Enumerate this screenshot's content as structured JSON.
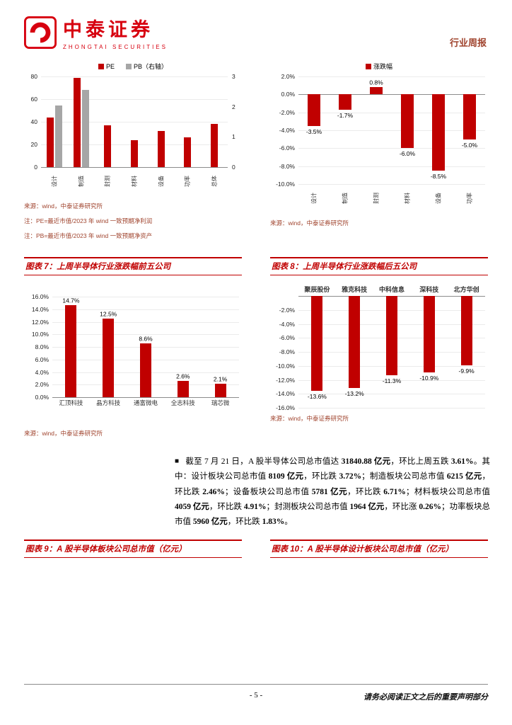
{
  "header": {
    "logo_cn": "中泰证券",
    "logo_en": "ZHONGTAI SECURITIES",
    "report_type": "行业周报"
  },
  "colors": {
    "brand_red": "#D7000F",
    "bar_red": "#C00000",
    "bar_gray": "#A6A6A6",
    "source_red": "#A0442E"
  },
  "chart_data": [
    {
      "id": "pe-pb",
      "type": "bar",
      "legend": [
        {
          "label": "PE",
          "color": "#C00000"
        },
        {
          "label": "PB（右轴）",
          "color": "#A6A6A6"
        }
      ],
      "categories": [
        "设计",
        "制造",
        "封测",
        "材料",
        "设备",
        "功率",
        "总体"
      ],
      "series": [
        {
          "name": "PE",
          "axis": "left",
          "color": "#C00000",
          "values": [
            44,
            79,
            37,
            24,
            32,
            26,
            38
          ]
        },
        {
          "name": "PB（右轴）",
          "axis": "right",
          "color": "#A6A6A6",
          "values": [
            2.05,
            2.55,
            null,
            null,
            null,
            null,
            null
          ]
        }
      ],
      "left_axis": {
        "min": 0,
        "max": 80,
        "ticks": [
          80,
          60,
          40,
          20,
          0
        ]
      },
      "right_axis": {
        "min": 0,
        "max": 3,
        "ticks": [
          3,
          2,
          1,
          0
        ]
      },
      "source": "来源：wind，中泰证券研究所",
      "notes": [
        "注：PE=最近市值/2023 年 wind 一致预期净利润",
        "注：PB=最近市值/2023 年 wind 一致预期净资产"
      ]
    },
    {
      "id": "sector-weekly-change",
      "type": "bar",
      "legend": [
        {
          "label": "涨跌幅",
          "color": "#C00000"
        }
      ],
      "categories": [
        "设计",
        "制造",
        "封测",
        "材料",
        "设备",
        "功率"
      ],
      "values": [
        -3.5,
        -1.7,
        0.8,
        -6.0,
        -8.5,
        -5.0
      ],
      "color": "#C00000",
      "axis": {
        "min": -10,
        "max": 2,
        "ticks": [
          2,
          0,
          -2,
          -4,
          -6,
          -8,
          -10
        ]
      },
      "source": "来源：wind，中泰证券研究所"
    },
    {
      "id": "top5-gainers",
      "type": "bar",
      "title": "图表 7：上周半导体行业涨跌幅前五公司",
      "categories": [
        "汇顶科技",
        "晶方科技",
        "通富微电",
        "全志科技",
        "瑞芯微"
      ],
      "values": [
        14.7,
        12.5,
        8.6,
        2.6,
        2.1
      ],
      "color": "#C00000",
      "axis": {
        "min": 0,
        "max": 16,
        "ticks": [
          16,
          14,
          12,
          10,
          8,
          6,
          4,
          2,
          0
        ]
      },
      "source": "来源：wind，中泰证券研究所"
    },
    {
      "id": "top5-losers",
      "type": "bar",
      "title": "图表 8：上周半导体行业涨跌幅后五公司",
      "categories": [
        "聚辰股份",
        "雅克科技",
        "中科信息",
        "深科技",
        "北方华创"
      ],
      "values": [
        -13.6,
        -13.2,
        -11.3,
        -10.9,
        -9.9
      ],
      "color": "#C00000",
      "axis": {
        "min": -16,
        "max": 0,
        "ticks": [
          -2,
          -4,
          -6,
          -8,
          -10,
          -12,
          -14,
          -16
        ]
      },
      "source": "来源：wind，中泰证券研究所"
    }
  ],
  "figures": {
    "fig9_title": "图表 9：A 股半导体板块公司总市值（亿元）",
    "fig10_title": "图表 10：A 股半导体设计板块公司总市值（亿元）"
  },
  "paragraph": {
    "bullet": "■",
    "segments": [
      {
        "t": "截至 7 月 21 日，A 股半导体公司总市值达 ",
        "b": 0
      },
      {
        "t": "31840.88 亿元",
        "b": 1
      },
      {
        "t": "，环比上周五跌 ",
        "b": 0
      },
      {
        "t": "3.61%",
        "b": 1
      },
      {
        "t": "。其中：设计板块公司总市值 ",
        "b": 0
      },
      {
        "t": "8109 亿元",
        "b": 1
      },
      {
        "t": "，环比跌 ",
        "b": 0
      },
      {
        "t": "3.72%",
        "b": 1
      },
      {
        "t": "；制造板块公司总市值 ",
        "b": 0
      },
      {
        "t": "6215 亿元",
        "b": 1
      },
      {
        "t": "，环比跌 ",
        "b": 0
      },
      {
        "t": "2.46%",
        "b": 1
      },
      {
        "t": "；设备板块公司总市值 ",
        "b": 0
      },
      {
        "t": "5781 亿元",
        "b": 1
      },
      {
        "t": "，环比跌 ",
        "b": 0
      },
      {
        "t": "6.71%",
        "b": 1
      },
      {
        "t": "；材料板块公司总市值 ",
        "b": 0
      },
      {
        "t": "4059 亿元",
        "b": 1
      },
      {
        "t": "，环比跌 ",
        "b": 0
      },
      {
        "t": "4.91%",
        "b": 1
      },
      {
        "t": "；封测板块公司总市值 ",
        "b": 0
      },
      {
        "t": "1964 亿元",
        "b": 1
      },
      {
        "t": "，环比涨 ",
        "b": 0
      },
      {
        "t": "0.26%",
        "b": 1
      },
      {
        "t": "；功率板块总市值 ",
        "b": 0
      },
      {
        "t": "5960 亿元",
        "b": 1
      },
      {
        "t": "，环比跌 ",
        "b": 0
      },
      {
        "t": "1.83%",
        "b": 1
      },
      {
        "t": "。",
        "b": 0
      }
    ]
  },
  "footer": {
    "page": "- 5 -",
    "disclaimer": "请务必阅读正文之后的重要声明部分"
  }
}
